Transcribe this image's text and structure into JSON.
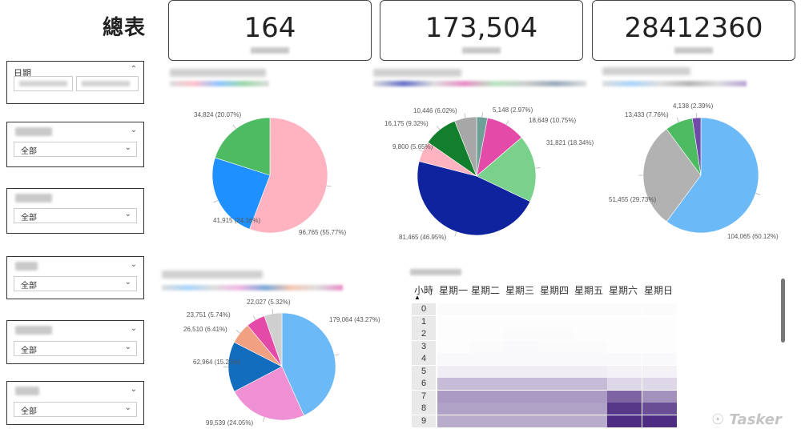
{
  "page": {
    "title": "總表"
  },
  "kpis": [
    {
      "value": "164"
    },
    {
      "value": "173,504"
    },
    {
      "value": "28412360"
    }
  ],
  "slicers": {
    "date_label": "日期",
    "all_label": "全部"
  },
  "colors": {
    "pink": "#ffb3c1",
    "blue": "#1e90ff",
    "green": "#4cbb62",
    "navy": "#10239e",
    "lightgreen": "#79d18c",
    "magenta": "#e44aa8",
    "darkgreen": "#127f2c",
    "gray": "#a7a7a7",
    "teal": "#6fa097",
    "skyblue": "#6cb9f7",
    "silver": "#b2b2b2",
    "purple": "#6f4aa8",
    "orchid": "#ef8fd4",
    "darkblue": "#126dbf",
    "salmon": "#f2a082",
    "lightgray": "#cfcfcf"
  },
  "chart_data": [
    {
      "type": "pie",
      "slices": [
        {
          "value": 96765,
          "label": "96,765 (55.77%)",
          "color": "#ffb3c1"
        },
        {
          "value": 41915,
          "label": "41,915 (24.16%)",
          "color": "#1e90ff"
        },
        {
          "value": 34824,
          "label": "34,824 (20.07%)",
          "color": "#4cbb62"
        }
      ]
    },
    {
      "type": "pie",
      "slices": [
        {
          "value": 5148,
          "label": "5,148 (2.97%)",
          "color": "#6fa097"
        },
        {
          "value": 18649,
          "label": "18,649 (10.75%)",
          "color": "#e44aa8"
        },
        {
          "value": 31821,
          "label": "31,821 (18.34%)",
          "color": "#79d18c"
        },
        {
          "value": 81465,
          "label": "81,465 (46.95%)",
          "color": "#10239e"
        },
        {
          "value": 9800,
          "label": "9,800 (5.65%)",
          "color": "#ffb3c1"
        },
        {
          "value": 16175,
          "label": "16,175 (9.32%)",
          "color": "#127f2c"
        },
        {
          "value": 10446,
          "label": "10,446 (6.02%)",
          "color": "#a7a7a7"
        }
      ]
    },
    {
      "type": "pie",
      "slices": [
        {
          "value": 104065,
          "label": "104,065 (60.12%)",
          "color": "#6cb9f7"
        },
        {
          "value": 51455,
          "label": "51,455 (29.73%)",
          "color": "#b2b2b2"
        },
        {
          "value": 13433,
          "label": "13,433 (7.76%)",
          "color": "#4cbb62"
        },
        {
          "value": 4138,
          "label": "4,138 (2.39%)",
          "color": "#6f4aa8"
        }
      ]
    },
    {
      "type": "pie",
      "slices": [
        {
          "value": 179064,
          "label": "179,064 (43.27%)",
          "color": "#6cb9f7"
        },
        {
          "value": 99539,
          "label": "99,539 (24.05%)",
          "color": "#ef8fd4"
        },
        {
          "value": 62964,
          "label": "62,964 (15.21%)",
          "color": "#126dbf"
        },
        {
          "value": 26510,
          "label": "26,510 (6.41%)",
          "color": "#f2a082"
        },
        {
          "value": 23751,
          "label": "23,751 (5.74%)",
          "color": "#e44aa8"
        },
        {
          "value": 22027,
          "label": "22,027 (5.32%)",
          "color": "#cfcfcf"
        }
      ]
    },
    {
      "type": "heatmap",
      "row_header": "小時",
      "columns": [
        "星期一",
        "星期二",
        "星期三",
        "星期四",
        "星期五",
        "星期六",
        "星期日"
      ],
      "rows": [
        "0",
        "1",
        "2",
        "3",
        "4",
        "5",
        "6",
        "7",
        "8",
        "9"
      ],
      "intensity": [
        [
          0.02,
          0.02,
          0.02,
          0.02,
          0.02,
          0.02,
          0.02
        ],
        [
          0.01,
          0.01,
          0.01,
          0.01,
          0.01,
          0.01,
          0.01
        ],
        [
          0.01,
          0.01,
          0.02,
          0.02,
          0.01,
          0.01,
          0.01
        ],
        [
          0.01,
          0.02,
          0.03,
          0.02,
          0.02,
          0.01,
          0.01
        ],
        [
          0.03,
          0.03,
          0.03,
          0.03,
          0.03,
          0.03,
          0.03
        ],
        [
          0.08,
          0.08,
          0.08,
          0.08,
          0.08,
          0.06,
          0.06
        ],
        [
          0.3,
          0.3,
          0.3,
          0.3,
          0.3,
          0.18,
          0.18
        ],
        [
          0.45,
          0.45,
          0.45,
          0.45,
          0.45,
          0.7,
          0.5
        ],
        [
          0.42,
          0.42,
          0.42,
          0.42,
          0.42,
          0.9,
          0.8
        ],
        [
          0.38,
          0.38,
          0.38,
          0.38,
          0.38,
          0.95,
          0.95
        ]
      ]
    }
  ],
  "watermark": "Tasker"
}
